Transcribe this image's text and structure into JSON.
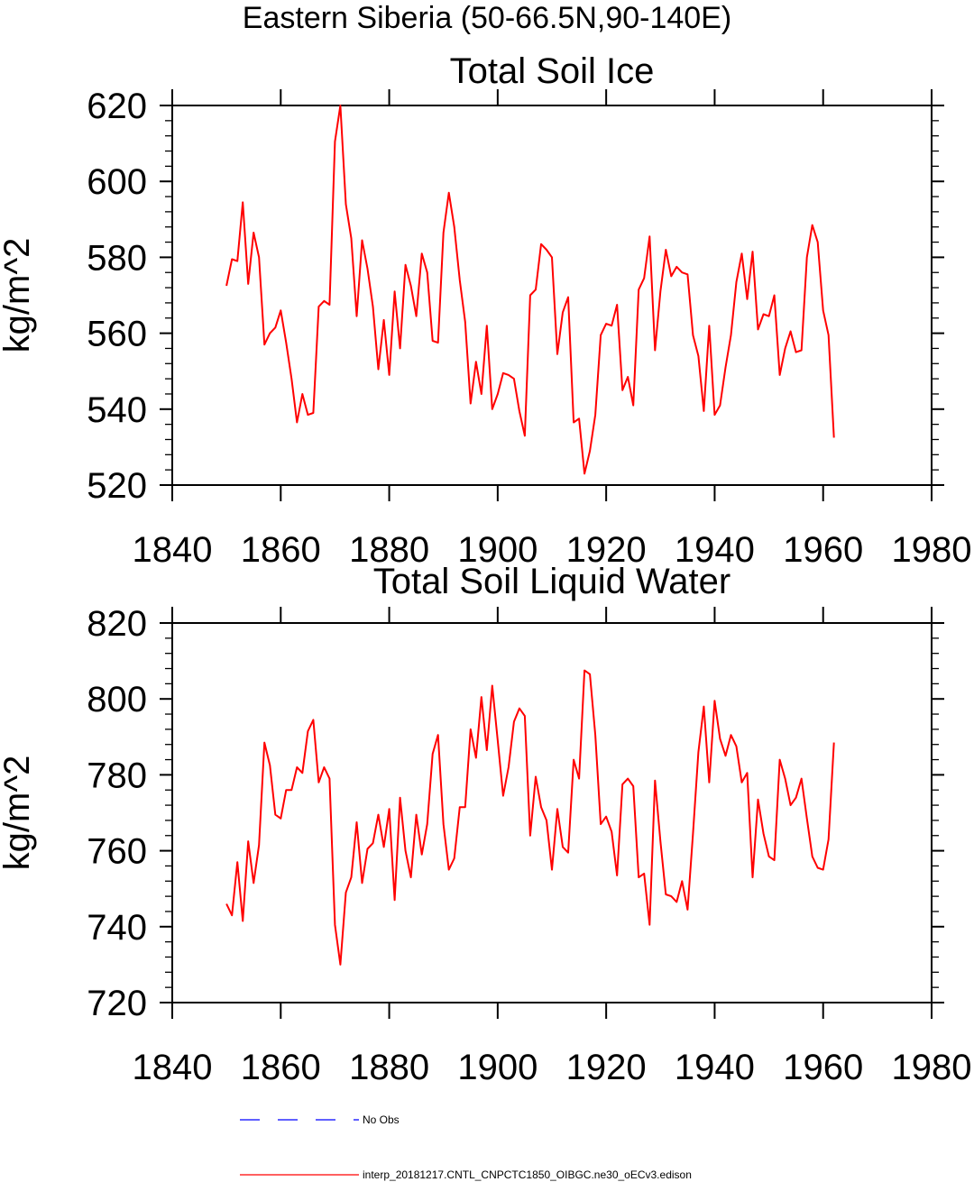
{
  "figure_title": "Eastern Siberia (50-66.5N,90-140E)",
  "legend": {
    "items": [
      {
        "label": "No Obs",
        "color": "#0000ff",
        "dash": true
      },
      {
        "label": "interp_20181217.CNTL_CNPCTC1850_OIBGC.ne30_oECv3.edison",
        "color": "#ff0000",
        "dash": false
      }
    ]
  },
  "chart_data": [
    {
      "type": "line",
      "title": "Total Soil Ice",
      "xlabel": "",
      "ylabel": "kg/m^2",
      "xlim": [
        1840,
        1980
      ],
      "ylim": [
        520,
        620
      ],
      "x_ticks": [
        1840,
        1860,
        1880,
        1900,
        1920,
        1940,
        1960,
        1980
      ],
      "y_ticks": [
        520,
        540,
        560,
        580,
        600,
        620
      ],
      "x_start": 1850,
      "series": [
        {
          "color": "#ff0000",
          "values": [
            572.5,
            579.5,
            579,
            594.5,
            573,
            586.5,
            580,
            557,
            560,
            561.5,
            566,
            557.5,
            548,
            536.5,
            544,
            538.5,
            539,
            567,
            568.5,
            567.5,
            610.5,
            620,
            594,
            585,
            564.5,
            584.5,
            577,
            567,
            550.5,
            563.5,
            549,
            571,
            556,
            578,
            572.5,
            564.5,
            581,
            576,
            558,
            557.5,
            586.5,
            597,
            588,
            574,
            563,
            541.5,
            552.5,
            544,
            562,
            540,
            544,
            549.5,
            549,
            548,
            539.5,
            533,
            570,
            571.5,
            583.5,
            582,
            580,
            554.5,
            565.5,
            569.5,
            536.5,
            537.5,
            523,
            529,
            538.5,
            559.5,
            562.5,
            562,
            567.5,
            545,
            548.5,
            541,
            571.5,
            574.5,
            585.5,
            555.5,
            571,
            582,
            575,
            577.5,
            576,
            575.5,
            559.5,
            554,
            539.5,
            562,
            538.5,
            541,
            551,
            559.5,
            573.5,
            581,
            569,
            581.5,
            561,
            565,
            564.5,
            570,
            549,
            556,
            560.5,
            555,
            555.5,
            580,
            588.5,
            584,
            566,
            559.5,
            532.5
          ]
        }
      ]
    },
    {
      "type": "line",
      "title": "Total Soil Liquid Water",
      "xlabel": "",
      "ylabel": "kg/m^2",
      "xlim": [
        1840,
        1980
      ],
      "ylim": [
        720,
        820
      ],
      "x_ticks": [
        1840,
        1860,
        1880,
        1900,
        1920,
        1940,
        1960,
        1980
      ],
      "y_ticks": [
        720,
        740,
        760,
        780,
        800,
        820
      ],
      "x_start": 1850,
      "series": [
        {
          "color": "#ff0000",
          "values": [
            746,
            743,
            757,
            741.5,
            762.5,
            751.5,
            761.5,
            788.5,
            782.5,
            769.5,
            768.5,
            776,
            776,
            782,
            780.5,
            791.5,
            794.5,
            778,
            782,
            779,
            740.5,
            730,
            749,
            753,
            767.5,
            751.5,
            760.5,
            762,
            769.5,
            761,
            771,
            747,
            774,
            760,
            753,
            769.5,
            759,
            767,
            785.5,
            790.5,
            767,
            755,
            758,
            771.5,
            771.5,
            792,
            784.5,
            800.5,
            786.5,
            803.5,
            789,
            774.5,
            782,
            794,
            797.5,
            795.5,
            764,
            779.5,
            771.5,
            768,
            755,
            771,
            761,
            759.5,
            784,
            779,
            807.5,
            806.5,
            790.5,
            767,
            769,
            765,
            753.5,
            777.5,
            779,
            777,
            753,
            754,
            740.5,
            778.5,
            762.5,
            748.5,
            748,
            746.5,
            752,
            744.5,
            764.5,
            786,
            798,
            778,
            799.5,
            789.5,
            785,
            790.5,
            787.5,
            778,
            780.5,
            753,
            773.5,
            764.5,
            758.5,
            757.5,
            784,
            779,
            772,
            774,
            779,
            768.5,
            758.5,
            755.5,
            755,
            763,
            788.5
          ]
        }
      ]
    }
  ]
}
